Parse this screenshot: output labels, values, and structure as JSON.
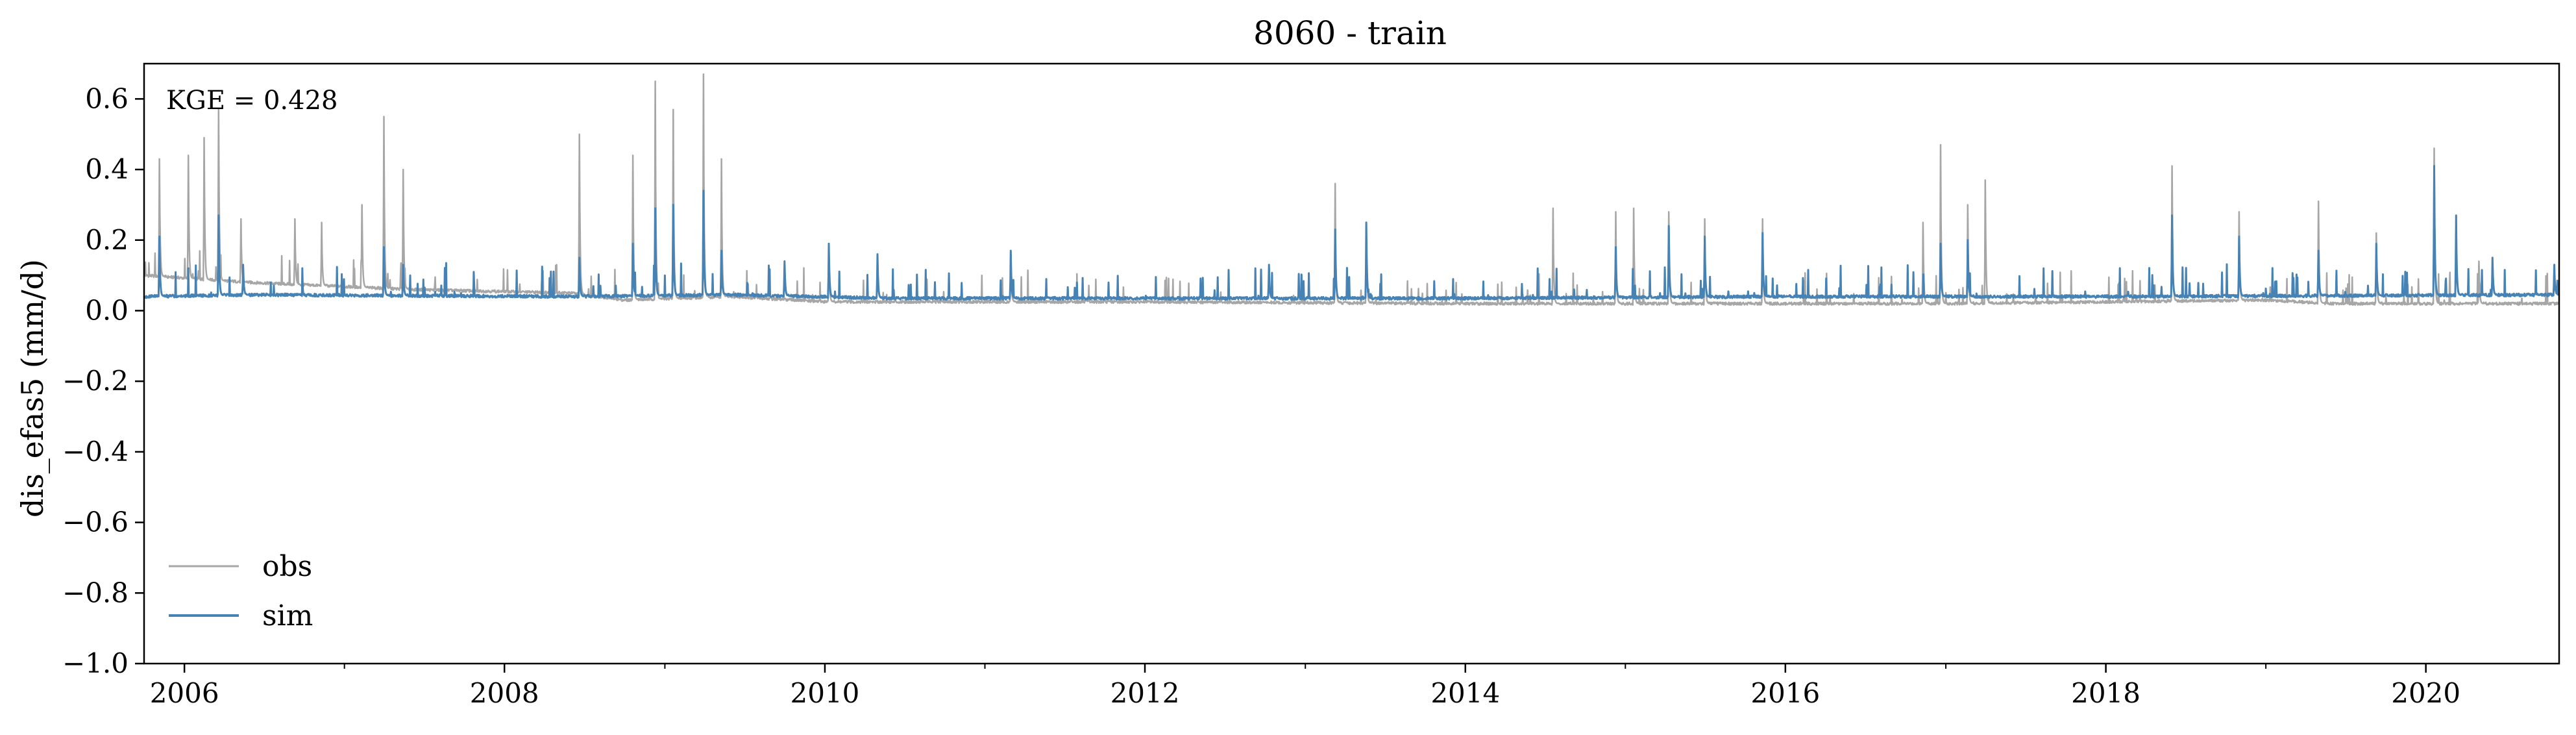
{
  "chart_data": {
    "type": "line",
    "title": "8060 - train",
    "xlabel": "",
    "ylabel": "dis_efas5 (mm/d)",
    "annotation": "KGE = 0.428",
    "xlim": [
      "2005-10-01",
      "2020-10-31"
    ],
    "ylim": [
      -1.0,
      0.7
    ],
    "y_ticks": [
      -1.0,
      -0.8,
      -0.6,
      -0.4,
      -0.2,
      0.0,
      0.2,
      0.4,
      0.6
    ],
    "y_tick_labels": [
      "−1.0",
      "−0.8",
      "−0.6",
      "−0.4",
      "−0.2",
      "0.0",
      "0.2",
      "0.4",
      "0.6"
    ],
    "x_ticks": [
      "2006-01-01",
      "2008-01-01",
      "2010-01-01",
      "2012-01-01",
      "2014-01-01",
      "2016-01-01",
      "2018-01-01",
      "2020-01-01"
    ],
    "x_tick_labels": [
      "2006",
      "2008",
      "2010",
      "2012",
      "2014",
      "2016",
      "2018",
      "2020"
    ],
    "grid": false,
    "legend_position": "lower-left",
    "series": [
      {
        "name": "obs",
        "color": "#a6a6a6",
        "baseline": [
          [
            "2005-10-01",
            0.1
          ],
          [
            "2006-06-01",
            0.08
          ],
          [
            "2007-06-01",
            0.06
          ],
          [
            "2008-06-01",
            0.05
          ],
          [
            "2008-10-01",
            0.03
          ],
          [
            "2009-06-01",
            0.04
          ],
          [
            "2010-01-01",
            0.025
          ],
          [
            "2012-01-01",
            0.025
          ],
          [
            "2014-01-01",
            0.02
          ],
          [
            "2016-01-01",
            0.02
          ],
          [
            "2017-01-01",
            0.02
          ],
          [
            "2019-01-01",
            0.03
          ],
          [
            "2019-06-01",
            0.02
          ],
          [
            "2020-10-31",
            0.02
          ]
        ],
        "peaks": [
          [
            "2005-11-05",
            0.43
          ],
          [
            "2006-01-10",
            0.44
          ],
          [
            "2006-02-15",
            0.49
          ],
          [
            "2006-03-20",
            0.57
          ],
          [
            "2006-05-10",
            0.26
          ],
          [
            "2006-09-10",
            0.26
          ],
          [
            "2006-11-10",
            0.25
          ],
          [
            "2007-02-10",
            0.3
          ],
          [
            "2007-04-01",
            0.55
          ],
          [
            "2007-05-15",
            0.4
          ],
          [
            "2008-06-20",
            0.5
          ],
          [
            "2008-10-20",
            0.44
          ],
          [
            "2008-12-10",
            0.65
          ],
          [
            "2009-01-20",
            0.57
          ],
          [
            "2009-03-30",
            0.67
          ],
          [
            "2009-05-10",
            0.43
          ],
          [
            "2010-01-10",
            0.18
          ],
          [
            "2011-03-01",
            0.17
          ],
          [
            "2013-03-10",
            0.36
          ],
          [
            "2013-05-20",
            0.25
          ],
          [
            "2014-07-20",
            0.29
          ],
          [
            "2014-12-10",
            0.28
          ],
          [
            "2015-01-20",
            0.29
          ],
          [
            "2015-04-10",
            0.28
          ],
          [
            "2015-07-01",
            0.26
          ],
          [
            "2015-11-10",
            0.26
          ],
          [
            "2016-11-10",
            0.25
          ],
          [
            "2016-12-20",
            0.47
          ],
          [
            "2017-02-20",
            0.3
          ],
          [
            "2017-04-01",
            0.37
          ],
          [
            "2018-06-01",
            0.41
          ],
          [
            "2018-11-01",
            0.28
          ],
          [
            "2019-05-01",
            0.31
          ],
          [
            "2019-09-10",
            0.22
          ],
          [
            "2020-01-20",
            0.46
          ],
          [
            "2020-05-01",
            0.14
          ]
        ]
      },
      {
        "name": "sim",
        "color": "#4682b4",
        "baseline": [
          [
            "2005-10-01",
            0.04
          ],
          [
            "2006-06-01",
            0.045
          ],
          [
            "2008-06-01",
            0.04
          ],
          [
            "2009-06-01",
            0.045
          ],
          [
            "2010-06-01",
            0.035
          ],
          [
            "2012-01-01",
            0.035
          ],
          [
            "2014-01-01",
            0.035
          ],
          [
            "2016-01-01",
            0.04
          ],
          [
            "2018-01-01",
            0.04
          ],
          [
            "2020-10-31",
            0.045
          ]
        ],
        "peaks": [
          [
            "2005-11-05",
            0.21
          ],
          [
            "2006-03-20",
            0.27
          ],
          [
            "2006-05-15",
            0.13
          ],
          [
            "2007-04-01",
            0.18
          ],
          [
            "2007-05-15",
            0.13
          ],
          [
            "2008-06-20",
            0.15
          ],
          [
            "2008-10-20",
            0.19
          ],
          [
            "2008-12-10",
            0.29
          ],
          [
            "2009-01-20",
            0.3
          ],
          [
            "2009-03-30",
            0.34
          ],
          [
            "2009-05-10",
            0.17
          ],
          [
            "2009-10-01",
            0.14
          ],
          [
            "2010-01-10",
            0.19
          ],
          [
            "2010-05-01",
            0.16
          ],
          [
            "2011-03-01",
            0.17
          ],
          [
            "2012-10-10",
            0.13
          ],
          [
            "2013-03-10",
            0.23
          ],
          [
            "2013-05-20",
            0.25
          ],
          [
            "2014-12-10",
            0.18
          ],
          [
            "2015-04-10",
            0.24
          ],
          [
            "2015-07-01",
            0.21
          ],
          [
            "2015-11-10",
            0.22
          ],
          [
            "2016-12-20",
            0.19
          ],
          [
            "2017-02-20",
            0.2
          ],
          [
            "2018-06-01",
            0.27
          ],
          [
            "2018-11-01",
            0.21
          ],
          [
            "2019-05-01",
            0.17
          ],
          [
            "2019-09-10",
            0.19
          ],
          [
            "2020-01-20",
            0.41
          ],
          [
            "2020-03-10",
            0.27
          ],
          [
            "2020-06-01",
            0.15
          ],
          [
            "2020-10-20",
            0.13
          ]
        ]
      }
    ]
  }
}
